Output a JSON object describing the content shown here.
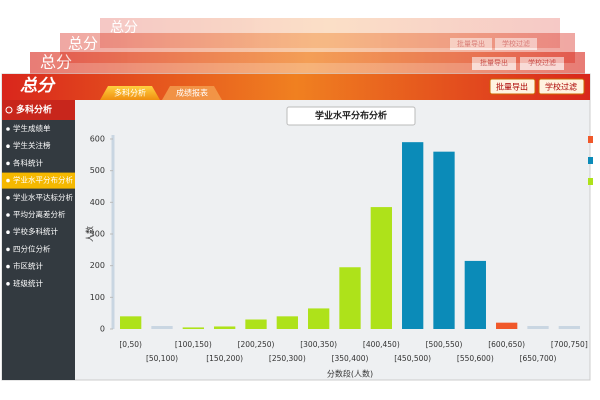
{
  "header": {
    "logo": "总分",
    "tabs": [
      "多科分析",
      "成绩报表"
    ],
    "buttons": [
      "批量导出",
      "学校过滤"
    ]
  },
  "sidebar": {
    "title": "多科分析",
    "active": 3,
    "items": [
      "学生成绩单",
      "学生关注榜",
      "各科统计",
      "学业水平分布分析",
      "学业水平达标分析",
      "平均分离差分析",
      "学校多科统计",
      "四分位分析",
      "市区统计",
      "班级统计"
    ]
  },
  "chart_data": {
    "type": "bar",
    "title": "学业水平分布分析",
    "ylabel": "人数",
    "xlabel": "分数段(人数)",
    "categories": [
      "[0,50)",
      "[50,100)",
      "[100,150)",
      "[150,200)",
      "[200,250)",
      "[250,300)",
      "[300,350)",
      "[350,400)",
      "[400,450)",
      "[450,500)",
      "[500,550)",
      "[550,600)",
      "[600,650)",
      "[650,700)",
      "[700,750]"
    ],
    "values": [
      40,
      0,
      5,
      8,
      30,
      40,
      65,
      195,
      385,
      590,
      560,
      215,
      20,
      0,
      0
    ],
    "colors": [
      "#aee21a",
      "#c9d6e2",
      "#aee21a",
      "#aee21a",
      "#aee21a",
      "#aee21a",
      "#aee21a",
      "#aee21a",
      "#aee21a",
      "#0b8bb8",
      "#0b8bb8",
      "#0b8bb8",
      "#f0582a",
      "#c9d6e2",
      "#c9d6e2"
    ],
    "legend_colors": [
      "#f0582a",
      "#0b8bb8",
      "#aee21a"
    ],
    "ylim": [
      0,
      600
    ],
    "yticks": [
      0,
      100,
      200,
      300,
      400,
      500,
      600
    ],
    "grid": false
  }
}
